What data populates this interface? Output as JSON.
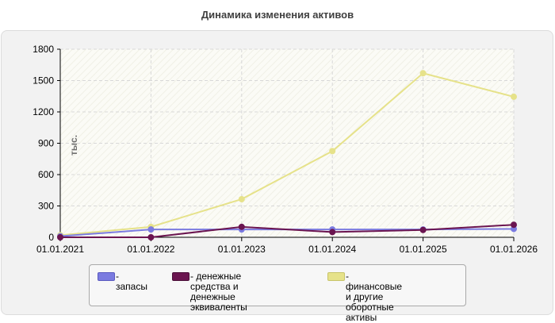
{
  "chart_data": {
    "type": "line",
    "title": "Динамика изменения активов",
    "ylabel": "тыс.",
    "xlabel": "",
    "x": [
      "01.01.2021",
      "01.01.2022",
      "01.01.2023",
      "01.01.2024",
      "01.01.2025",
      "01.01.2026"
    ],
    "ylim": [
      0,
      1800
    ],
    "yticks": [
      "0",
      "300",
      "600",
      "900",
      "1200",
      "1500",
      "1800"
    ],
    "grid": true,
    "legend_position": "bottom",
    "series": [
      {
        "name": "- запасы",
        "color": "#7b7be0",
        "values": [
          10,
          75,
          75,
          75,
          75,
          80
        ]
      },
      {
        "name": "- денежные средства и\nденежные эквиваленты",
        "color": "#6b1550",
        "values": [
          0,
          0,
          100,
          50,
          70,
          120
        ]
      },
      {
        "name": "- финансовые и другие\nоборотные активы",
        "color": "#e6e28a",
        "values": [
          20,
          100,
          365,
          825,
          1570,
          1345
        ]
      }
    ]
  }
}
